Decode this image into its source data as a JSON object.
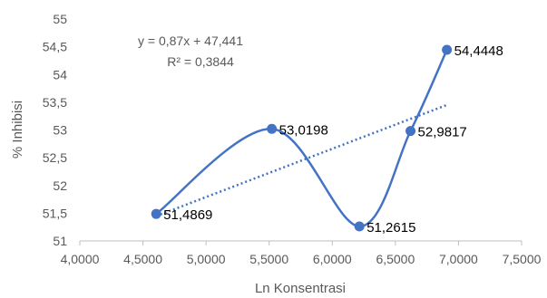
{
  "chart_data": {
    "type": "scatter",
    "xlabel": "Ln Konsentrasi",
    "ylabel": "% Inhibisi",
    "xlim": [
      4.0,
      7.5
    ],
    "ylim": [
      51,
      55
    ],
    "x_ticks": [
      "4,0000",
      "4,5000",
      "5,0000",
      "5,5000",
      "6,0000",
      "6,5000",
      "7,0000",
      "7,5000"
    ],
    "y_ticks": [
      "51",
      "51,5",
      "52",
      "52,5",
      "53",
      "53,5",
      "54",
      "54,5",
      "55"
    ],
    "grid": false,
    "legend": "none",
    "series": [
      {
        "smooth": true,
        "color": "#4472C4",
        "points": [
          {
            "x": 4.605,
            "y": 51.4869,
            "label": "51,4869"
          },
          {
            "x": 5.521,
            "y": 53.0198,
            "label": "53,0198"
          },
          {
            "x": 6.215,
            "y": 51.2615,
            "label": "51,2615"
          },
          {
            "x": 6.62,
            "y": 52.9817,
            "label": "52,9817"
          },
          {
            "x": 6.908,
            "y": 54.4448,
            "label": "54,4448"
          }
        ]
      }
    ],
    "trendline": {
      "type": "linear",
      "style": "dotted",
      "color": "#4472C4",
      "slope": 0.87,
      "intercept": 47.441,
      "equation": "y = 0,87x + 47,441",
      "r_squared": "R² = 0,3844"
    }
  }
}
